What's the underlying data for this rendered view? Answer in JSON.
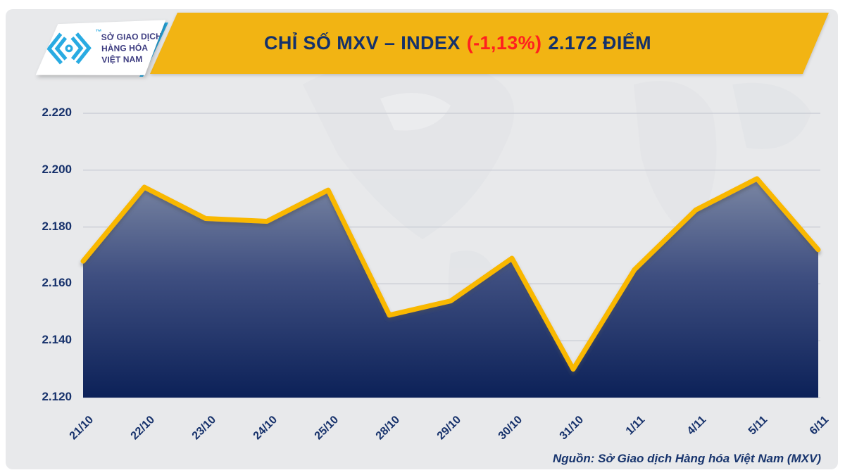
{
  "header": {
    "logo": {
      "name1": "SỞ GIAO DỊCH",
      "name2": "HÀNG HÓA",
      "name3": "VIỆT NAM",
      "trademark": "™"
    },
    "banner": {
      "title": "CHỈ SỐ MXV – INDEX",
      "change": "(-1,13%)",
      "value": "2.172 ĐIỂM"
    }
  },
  "chart_data": {
    "type": "area",
    "title": "CHỈ SỐ MXV – INDEX (-1,13%) 2.172 ĐIỂM",
    "x": [
      "21/10",
      "22/10",
      "23/10",
      "24/10",
      "25/10",
      "28/10",
      "29/10",
      "30/10",
      "31/10",
      "1/11",
      "4/11",
      "5/11",
      "6/11"
    ],
    "values": [
      2168,
      2194,
      2183,
      2182,
      2193,
      2149,
      2154,
      2169,
      2130,
      2165,
      2186,
      2197,
      2172
    ],
    "ylim": [
      2120,
      2220
    ],
    "yticks": [
      "2.220",
      "2.200",
      "2.180",
      "2.160",
      "2.140",
      "2.120"
    ],
    "ytick_values": [
      2220,
      2200,
      2180,
      2160,
      2140,
      2120
    ],
    "xlabel": "",
    "ylabel": "",
    "grid": true,
    "legend": "none",
    "colors": {
      "line": "#F9B800",
      "area_top": "#7A86A3",
      "area_mid": "#3E4E80",
      "area_bottom": "#0C2158",
      "grid_line": "#C6C9D2",
      "axis_text": "#16316B"
    }
  },
  "footer": {
    "source": "Nguồn: Sở Giao dịch Hàng hóa Việt Nam (MXV)"
  },
  "colors": {
    "background": "#E8E9EB",
    "banner_bg": "#F2B413",
    "banner_text": "#14316B",
    "banner_change": "#FF1F1F",
    "logo_mark": "#29ABE2",
    "logo_text": "#3D3C80"
  }
}
